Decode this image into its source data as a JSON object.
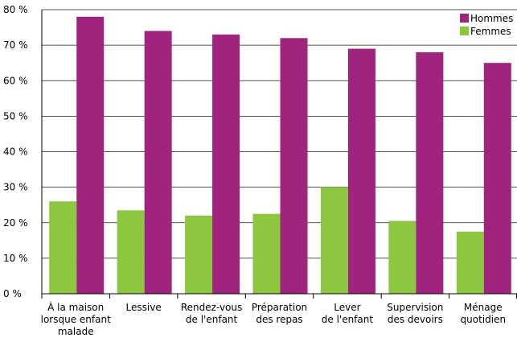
{
  "chart_data": {
    "type": "bar",
    "title": "",
    "xlabel": "",
    "ylabel": "",
    "ylim": [
      0,
      80
    ],
    "yticks": [
      0,
      10,
      20,
      30,
      40,
      50,
      60,
      70,
      80
    ],
    "ytick_labels": [
      "0 %",
      "10 %",
      "20 %",
      "30 %",
      "40 %",
      "50 %",
      "60 %",
      "70 %",
      "80 %"
    ],
    "grid": true,
    "legend_position": "top-right",
    "categories": [
      [
        "À la maison",
        "lorsque enfant",
        "malade"
      ],
      [
        "Lessive"
      ],
      [
        "Rendez-vous",
        "de l'enfant"
      ],
      [
        "Préparation",
        "des repas"
      ],
      [
        "Lever",
        "de l'enfant"
      ],
      [
        "Supervision",
        "des devoirs"
      ],
      [
        "Ménage",
        "quotidien"
      ]
    ],
    "series": [
      {
        "name": "Femmes",
        "color": "#8dc63f",
        "values": [
          26,
          23.5,
          22,
          22.5,
          30,
          20.5,
          17.5
        ]
      },
      {
        "name": "Hommes",
        "color": "#a0237e",
        "values": [
          78,
          74,
          73,
          72,
          69,
          68,
          65
        ]
      }
    ],
    "legend_order": [
      "Hommes",
      "Femmes"
    ]
  }
}
